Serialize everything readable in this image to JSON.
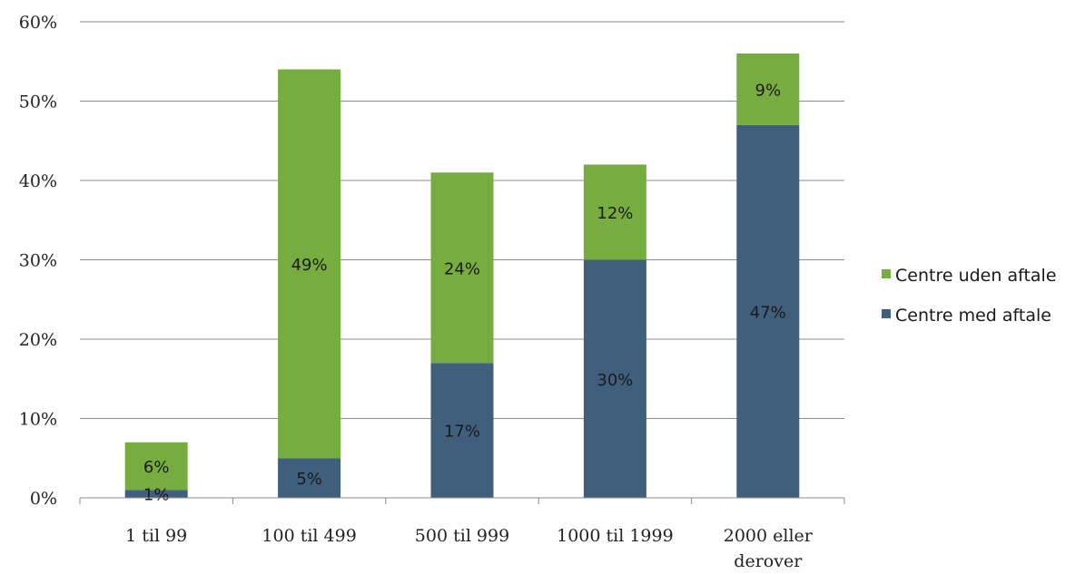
{
  "chart_data": {
    "type": "bar",
    "stacked": true,
    "categories": [
      "1 til 99",
      "100 til 499",
      "500 til 999",
      "1000 til 1999",
      "2000 eller derover"
    ],
    "series": [
      {
        "name": "Centre med aftale",
        "values": [
          1,
          5,
          17,
          30,
          47
        ],
        "labels": [
          "1%",
          "5%",
          "17%",
          "30%",
          "47%"
        ],
        "color": "#3f5f7d"
      },
      {
        "name": "Centre uden aftale",
        "values": [
          6,
          49,
          24,
          12,
          9
        ],
        "labels": [
          "6%",
          "49%",
          "24%",
          "12%",
          "9%"
        ],
        "color": "#77ad3f"
      }
    ],
    "y_ticks": [
      "0%",
      "10%",
      "20%",
      "30%",
      "40%",
      "50%",
      "60%"
    ],
    "ylim": [
      0,
      60
    ],
    "grid": true,
    "legend": "right",
    "legend_order": [
      "Centre uden aftale",
      "Centre med aftale"
    ]
  }
}
